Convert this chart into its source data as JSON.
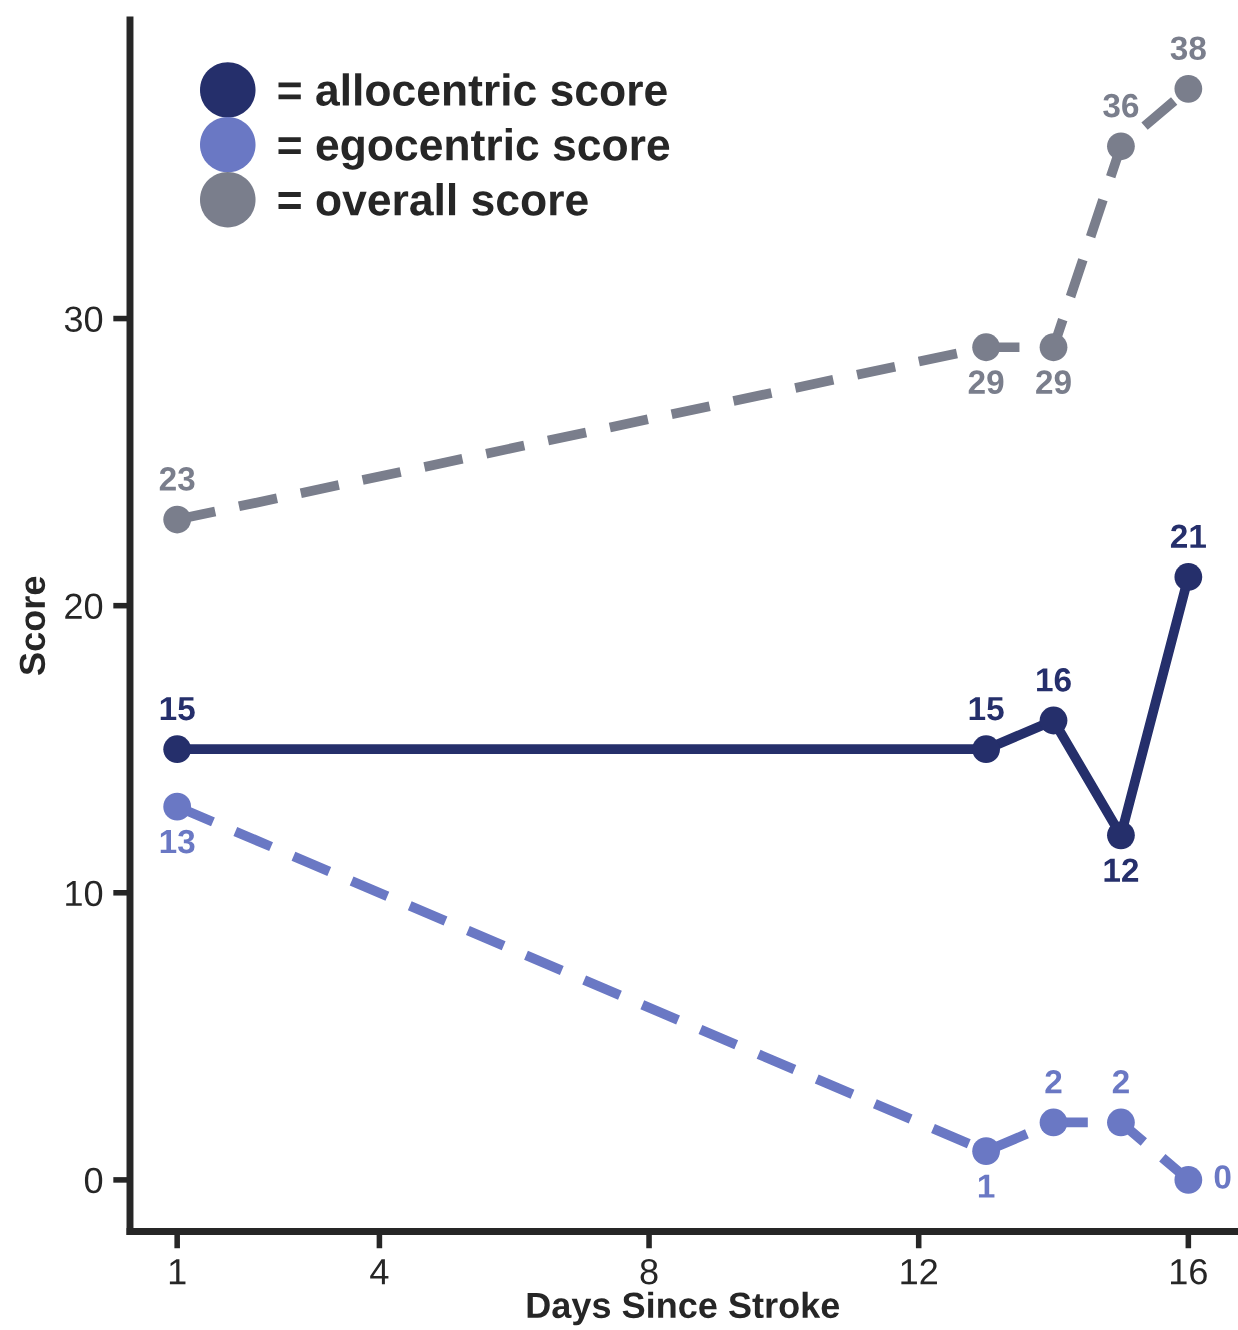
{
  "chart_data": {
    "type": "line",
    "xlabel": "Days Since Stroke",
    "ylabel": "Score",
    "x": [
      1,
      13,
      14,
      15,
      16
    ],
    "series": [
      {
        "name": "= allocentric score",
        "color": "#252f6b",
        "values": [
          15,
          15,
          16,
          12,
          21
        ],
        "line_style": "solid"
      },
      {
        "name": "= egocentric score",
        "color": "#6a78c4",
        "values": [
          13,
          1,
          2,
          2,
          0
        ],
        "line_style": "dashed"
      },
      {
        "name": "= overall score",
        "color": "#7a7e8c",
        "values": [
          23,
          29,
          29,
          36,
          38
        ],
        "line_style": "dashed"
      }
    ],
    "xlim": [
      0.3,
      16.7
    ],
    "xticks": [
      1,
      4,
      8,
      12,
      16
    ],
    "ylim": [
      -1.8,
      40.4
    ],
    "yticks": [
      0,
      10,
      20,
      30
    ],
    "marker": "circle",
    "data_labels": true,
    "legend": "top left",
    "grid": false
  }
}
